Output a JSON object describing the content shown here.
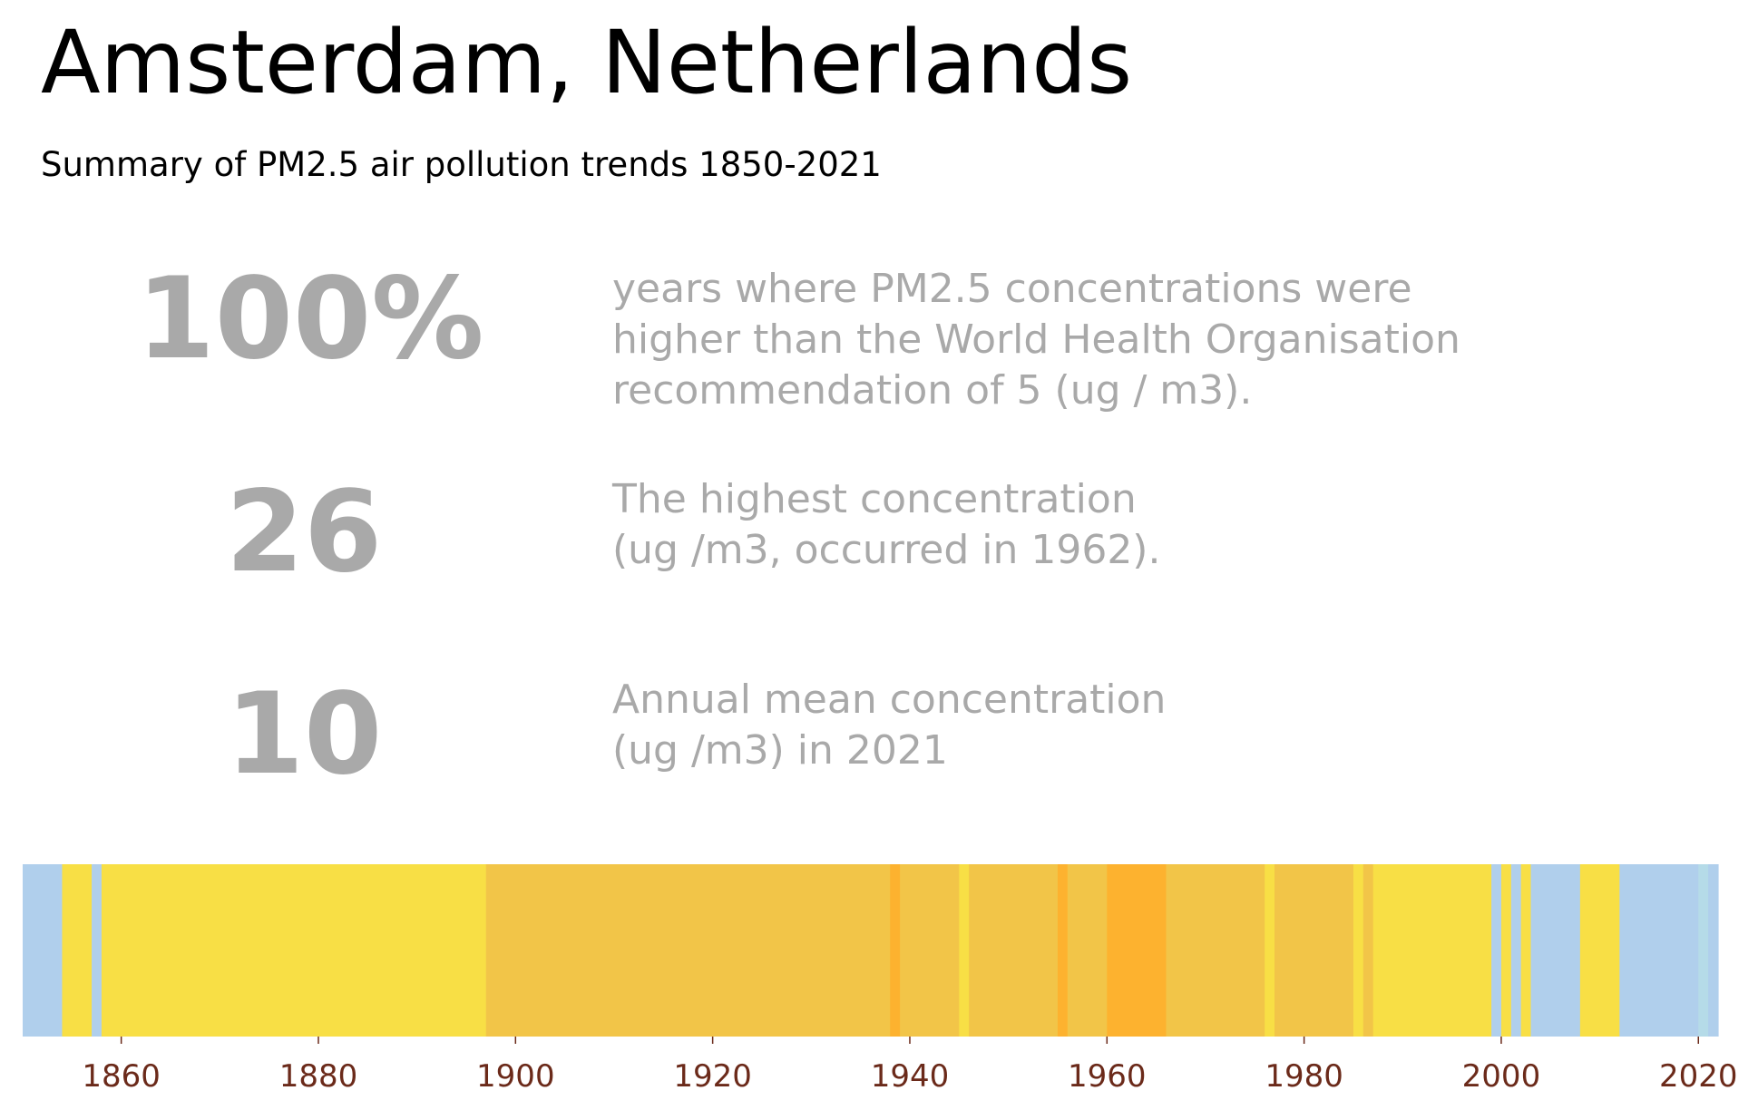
{
  "header": {
    "title": "Amsterdam, Netherlands",
    "subtitle": "Summary of PM2.5 air pollution trends 1850-2021"
  },
  "stats": [
    {
      "value": "100%",
      "description_lines": [
        "years where PM2.5 concentrations were",
        "higher than the World Health Organisation",
        "recommendation of 5 (ug / m3)."
      ]
    },
    {
      "value": "26",
      "description_lines": [
        "The highest concentration",
        "(ug /m3, occurred in 1962)."
      ]
    },
    {
      "value": "10",
      "description_lines": [
        "Annual mean concentration",
        "(ug /m3) in 2021"
      ]
    }
  ],
  "chart_data": {
    "type": "heatmap",
    "title": "",
    "xlabel": "",
    "ylabel": "",
    "xlim": [
      1850,
      2022
    ],
    "x_ticks": [
      1860,
      1880,
      1900,
      1920,
      1940,
      1960,
      1980,
      2000,
      2020
    ],
    "grid": false,
    "legend": "none",
    "colors": {
      "blue": "#b0cfec",
      "light_blue": "#b5dbe8",
      "yellow": "#f8df45",
      "gold": "#f2c548",
      "orange": "#fdb22f",
      "tick_label": "#6b2a1a"
    },
    "segments": [
      {
        "start": 1850,
        "end": 1854,
        "color_class": "blue"
      },
      {
        "start": 1854,
        "end": 1857,
        "color_class": "yellow"
      },
      {
        "start": 1857,
        "end": 1858,
        "color_class": "blue"
      },
      {
        "start": 1858,
        "end": 1897,
        "color_class": "yellow"
      },
      {
        "start": 1897,
        "end": 1938,
        "color_class": "gold"
      },
      {
        "start": 1938,
        "end": 1939,
        "color_class": "orange"
      },
      {
        "start": 1939,
        "end": 1945,
        "color_class": "gold"
      },
      {
        "start": 1945,
        "end": 1946,
        "color_class": "yellow"
      },
      {
        "start": 1946,
        "end": 1955,
        "color_class": "gold"
      },
      {
        "start": 1955,
        "end": 1956,
        "color_class": "orange"
      },
      {
        "start": 1956,
        "end": 1960,
        "color_class": "gold"
      },
      {
        "start": 1960,
        "end": 1966,
        "color_class": "orange"
      },
      {
        "start": 1966,
        "end": 1976,
        "color_class": "gold"
      },
      {
        "start": 1976,
        "end": 1977,
        "color_class": "yellow"
      },
      {
        "start": 1977,
        "end": 1985,
        "color_class": "gold"
      },
      {
        "start": 1985,
        "end": 1986,
        "color_class": "yellow"
      },
      {
        "start": 1986,
        "end": 1987,
        "color_class": "gold"
      },
      {
        "start": 1987,
        "end": 1999,
        "color_class": "yellow"
      },
      {
        "start": 1999,
        "end": 2000,
        "color_class": "blue"
      },
      {
        "start": 2000,
        "end": 2001,
        "color_class": "yellow"
      },
      {
        "start": 2001,
        "end": 2002,
        "color_class": "blue"
      },
      {
        "start": 2002,
        "end": 2003,
        "color_class": "yellow"
      },
      {
        "start": 2003,
        "end": 2008,
        "color_class": "blue"
      },
      {
        "start": 2008,
        "end": 2012,
        "color_class": "yellow"
      },
      {
        "start": 2012,
        "end": 2020,
        "color_class": "blue"
      },
      {
        "start": 2020,
        "end": 2021,
        "color_class": "light_blue"
      },
      {
        "start": 2021,
        "end": 2022,
        "color_class": "blue"
      }
    ]
  }
}
